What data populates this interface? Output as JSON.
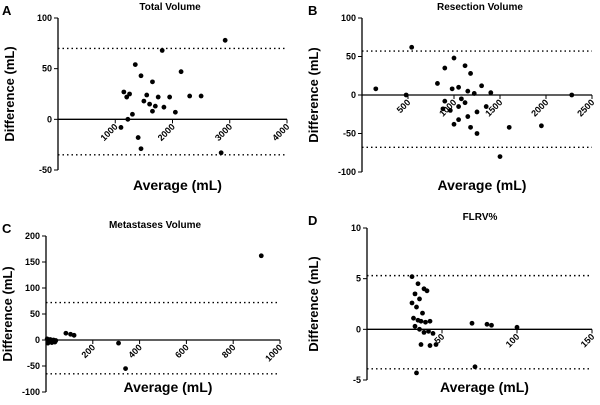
{
  "chart_data": [
    {
      "type": "scatter",
      "letter": "A",
      "title": "Total Volume",
      "xlabel": "Average (mL)",
      "ylabel": "Difference (mL)",
      "xlim": [
        0,
        4000
      ],
      "ylim": [
        -50,
        100
      ],
      "xticks": [
        "1000",
        "2000",
        "3000",
        "4000"
      ],
      "xtick_values": [
        1000,
        2000,
        3000,
        4000
      ],
      "yticks": [
        "-50",
        "0",
        "50",
        "100"
      ],
      "ytick_values": [
        -50,
        0,
        50,
        100
      ],
      "limits": [
        70,
        -35
      ],
      "points": [
        [
          2920,
          78
        ],
        [
          1820,
          68
        ],
        [
          1350,
          54
        ],
        [
          2150,
          47
        ],
        [
          1450,
          43
        ],
        [
          1650,
          37
        ],
        [
          1150,
          27
        ],
        [
          1250,
          25
        ],
        [
          1200,
          22
        ],
        [
          1550,
          24
        ],
        [
          1750,
          22
        ],
        [
          1950,
          22
        ],
        [
          2300,
          23
        ],
        [
          2500,
          23
        ],
        [
          1600,
          15
        ],
        [
          1500,
          18
        ],
        [
          1700,
          13
        ],
        [
          1850,
          12
        ],
        [
          1650,
          8
        ],
        [
          2050,
          7
        ],
        [
          1300,
          5
        ],
        [
          1220,
          0
        ],
        [
          1100,
          -8
        ],
        [
          1400,
          -18
        ],
        [
          1450,
          -29
        ],
        [
          2850,
          -33
        ]
      ]
    },
    {
      "type": "scatter",
      "letter": "B",
      "title": "Resection Volume",
      "xlabel": "Average (mL)",
      "ylabel": "Difference (mL)",
      "xlim": [
        0,
        2500
      ],
      "ylim": [
        -100,
        100
      ],
      "xticks": [
        "500",
        "1000",
        "1500",
        "2000",
        "2500"
      ],
      "xtick_values": [
        500,
        1000,
        1500,
        2000,
        2500
      ],
      "yticks": [
        "-100",
        "-50",
        "0",
        "50",
        "100"
      ],
      "ytick_values": [
        -100,
        -50,
        0,
        50,
        100
      ],
      "limits": [
        57,
        -68
      ],
      "points": [
        [
          540,
          62
        ],
        [
          1000,
          48
        ],
        [
          1120,
          38
        ],
        [
          900,
          35
        ],
        [
          1180,
          28
        ],
        [
          820,
          15
        ],
        [
          1300,
          12
        ],
        [
          1050,
          10
        ],
        [
          980,
          8
        ],
        [
          1150,
          5
        ],
        [
          1220,
          2
        ],
        [
          150,
          8
        ],
        [
          480,
          0
        ],
        [
          1400,
          3
        ],
        [
          1080,
          -5
        ],
        [
          900,
          -8
        ],
        [
          1120,
          -10
        ],
        [
          1050,
          -15
        ],
        [
          1350,
          -15
        ],
        [
          880,
          -18
        ],
        [
          960,
          -20
        ],
        [
          1250,
          -22
        ],
        [
          1150,
          -28
        ],
        [
          1050,
          -32
        ],
        [
          1000,
          -38
        ],
        [
          1180,
          -42
        ],
        [
          1600,
          -42
        ],
        [
          1950,
          -40
        ],
        [
          1250,
          -50
        ],
        [
          1500,
          -80
        ],
        [
          2280,
          0
        ]
      ]
    },
    {
      "type": "scatter",
      "letter": "C",
      "title": "Metastases Volume",
      "xlabel": "Average (mL)",
      "ylabel": "Difference (mL)",
      "xlim": [
        0,
        1000
      ],
      "ylim": [
        -100,
        200
      ],
      "xticks": [
        "200",
        "400",
        "600",
        "800",
        "1000"
      ],
      "xtick_values": [
        200,
        400,
        600,
        800,
        1000
      ],
      "yticks": [
        "-100",
        "-50",
        "0",
        "50",
        "100",
        "150",
        "200"
      ],
      "ytick_values": [
        -100,
        -50,
        0,
        50,
        100,
        150,
        200
      ],
      "limits": [
        72,
        -65
      ],
      "points": [
        [
          920,
          162
        ],
        [
          85,
          13
        ],
        [
          105,
          11
        ],
        [
          120,
          9
        ],
        [
          5,
          2
        ],
        [
          12,
          -1
        ],
        [
          18,
          1
        ],
        [
          22,
          -3
        ],
        [
          28,
          -2
        ],
        [
          32,
          0
        ],
        [
          38,
          -4
        ],
        [
          42,
          -1
        ],
        [
          8,
          -6
        ],
        [
          25,
          -5
        ],
        [
          310,
          -6
        ],
        [
          340,
          -55
        ]
      ]
    },
    {
      "type": "scatter",
      "letter": "D",
      "title": "FLRV%",
      "xlabel": "Average (mL)",
      "ylabel": "Difference (mL)",
      "xlim": [
        0,
        150
      ],
      "ylim": [
        -5,
        10
      ],
      "xticks": [
        "50",
        "100",
        "150"
      ],
      "xtick_values": [
        50,
        100,
        150
      ],
      "yticks": [
        "-5",
        "0",
        "5",
        "10"
      ],
      "ytick_values": [
        -5,
        0,
        5,
        10
      ],
      "limits": [
        5.3,
        -3.9
      ],
      "points": [
        [
          30,
          5.2
        ],
        [
          34,
          4.5
        ],
        [
          38,
          4.0
        ],
        [
          40,
          3.8
        ],
        [
          32,
          3.5
        ],
        [
          35,
          3.0
        ],
        [
          30,
          2.6
        ],
        [
          33,
          2.2
        ],
        [
          37,
          1.6
        ],
        [
          31,
          1.1
        ],
        [
          34,
          0.9
        ],
        [
          36,
          0.8
        ],
        [
          39,
          0.7
        ],
        [
          42,
          0.8
        ],
        [
          32,
          0.3
        ],
        [
          35,
          0.0
        ],
        [
          38,
          -0.3
        ],
        [
          41,
          -0.2
        ],
        [
          44,
          -0.4
        ],
        [
          36,
          -1.5
        ],
        [
          42,
          -1.6
        ],
        [
          46,
          -1.5
        ],
        [
          33,
          -4.3
        ],
        [
          72,
          -3.7
        ],
        [
          70,
          0.6
        ],
        [
          80,
          0.5
        ],
        [
          83,
          0.4
        ],
        [
          100,
          0.2
        ]
      ]
    }
  ]
}
